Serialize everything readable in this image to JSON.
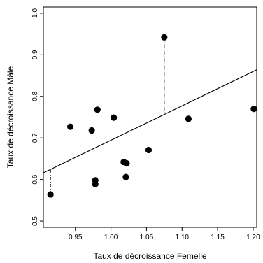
{
  "chart_data": {
    "type": "scatter",
    "xlabel": "Taux de décroissance Femelle",
    "ylabel": "Taux de décroissance Mâle",
    "xlim": [
      0.905,
      1.205
    ],
    "ylim": [
      0.485,
      1.015
    ],
    "x_ticks": [
      0.95,
      1.0,
      1.05,
      1.1,
      1.15,
      1.2
    ],
    "x_tick_labels": [
      "0.95",
      "1.00",
      "1.05",
      "1.10",
      "1.15",
      "1.20"
    ],
    "y_ticks": [
      0.5,
      0.6,
      0.7,
      0.8,
      0.9,
      1.0
    ],
    "y_tick_labels": [
      "0.5",
      "0.6",
      "0.7",
      "0.8",
      "0.9",
      "1.0"
    ],
    "grid": false,
    "legend": "none",
    "points": [
      {
        "x": 0.915,
        "y": 0.564
      },
      {
        "x": 0.943,
        "y": 0.727
      },
      {
        "x": 0.973,
        "y": 0.718
      },
      {
        "x": 0.978,
        "y": 0.598
      },
      {
        "x": 0.978,
        "y": 0.589
      },
      {
        "x": 0.981,
        "y": 0.768
      },
      {
        "x": 1.004,
        "y": 0.749
      },
      {
        "x": 1.018,
        "y": 0.642
      },
      {
        "x": 1.021,
        "y": 0.606
      },
      {
        "x": 1.022,
        "y": 0.639
      },
      {
        "x": 1.053,
        "y": 0.671
      },
      {
        "x": 1.075,
        "y": 0.942
      },
      {
        "x": 1.109,
        "y": 0.746
      },
      {
        "x": 1.201,
        "y": 0.77
      }
    ],
    "fit_line": {
      "x": [
        0.905,
        1.205
      ],
      "y": [
        0.616,
        0.864
      ]
    },
    "residual_segments": [
      {
        "x": 0.915,
        "y_from": 0.564,
        "y_to": 0.624
      },
      {
        "x": 1.075,
        "y_from": 0.942,
        "y_to": 0.756
      }
    ],
    "colors": {
      "points": "#000000",
      "line": "#000000",
      "frame": "#000000"
    }
  }
}
